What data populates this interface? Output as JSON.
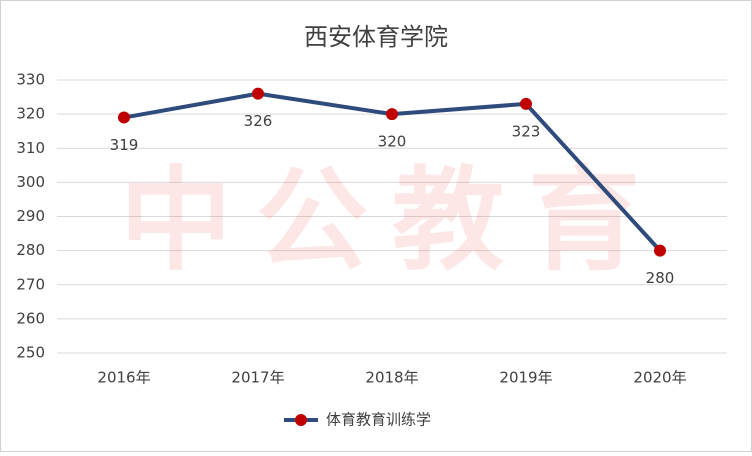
{
  "chart_data": {
    "type": "line",
    "title": "西安体育学院",
    "watermark": "中公教育",
    "categories": [
      "2016年",
      "2017年",
      "2018年",
      "2019年",
      "2020年"
    ],
    "series": [
      {
        "name": "体育教育训练学",
        "color": "#2f4b7c",
        "marker_color": "#c00000",
        "values": [
          319,
          326,
          320,
          323,
          280
        ]
      }
    ],
    "ylim": [
      250,
      330
    ],
    "yticks": [
      250,
      260,
      270,
      280,
      290,
      300,
      310,
      320,
      330
    ],
    "grid": true,
    "legend": "bottom"
  }
}
